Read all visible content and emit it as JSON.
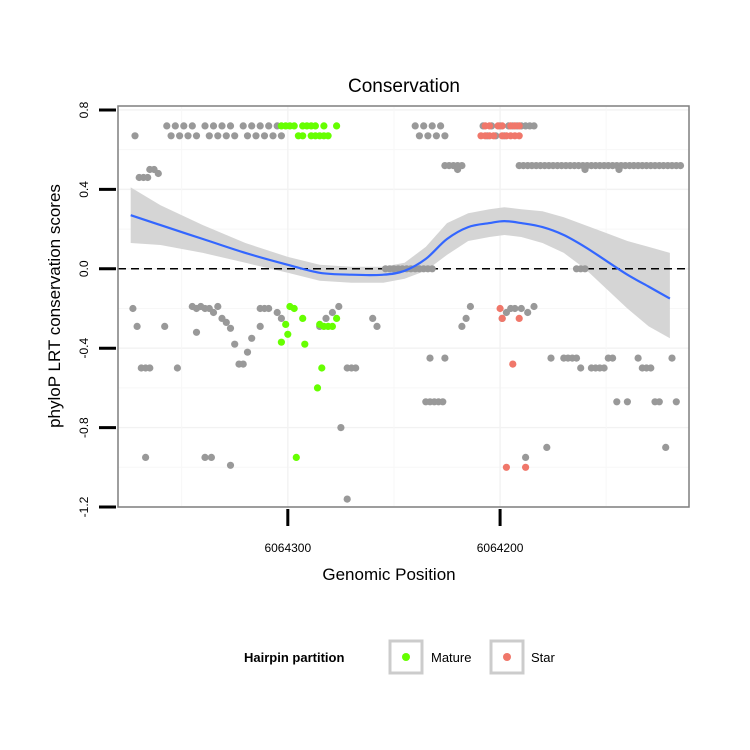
{
  "chart_data": {
    "type": "scatter",
    "title": "Conservation",
    "xlabel": "Genomic Position",
    "ylabel": "phyloP LRT conservation scores",
    "x_reversed": true,
    "xlim": [
      6064380,
      6064111
    ],
    "ylim": [
      -1.2,
      0.82
    ],
    "x_ticks": [
      6064300,
      6064200
    ],
    "x_tick_labels": [
      "6064300",
      "6064200"
    ],
    "y_ticks": [
      -1.2,
      -0.8,
      -0.4,
      0.0,
      0.4,
      0.8
    ],
    "y_tick_labels": [
      "-1.2",
      "-0.8",
      "-0.4",
      "0.0",
      "0.4",
      "0.8"
    ],
    "reference_line": {
      "y": 0.0,
      "style": "dashed"
    },
    "grid": true,
    "legend": {
      "title": "Hairpin partition",
      "position": "bottom",
      "entries": [
        {
          "label": "Mature",
          "color": "#66ff00"
        },
        {
          "label": "Star",
          "color": "#f0776a"
        }
      ]
    },
    "colors": {
      "other": "#999999",
      "mature": "#66ff00",
      "star": "#f0776a",
      "smooth": "#3366ff",
      "ribbon": "#d3d3d3"
    },
    "smooth": {
      "x": [
        6064374,
        6064360,
        6064340,
        6064320,
        6064300,
        6064285,
        6064270,
        6064255,
        6064245,
        6064235,
        6064225,
        6064215,
        6064205,
        6064198,
        6064190,
        6064180,
        6064170,
        6064160,
        6064150,
        6064140,
        6064130,
        6064120
      ],
      "y": [
        0.27,
        0.22,
        0.15,
        0.08,
        0.02,
        -0.02,
        -0.03,
        -0.03,
        -0.01,
        0.05,
        0.15,
        0.21,
        0.23,
        0.24,
        0.23,
        0.21,
        0.17,
        0.11,
        0.04,
        -0.03,
        -0.09,
        -0.15
      ],
      "lower": [
        0.13,
        0.12,
        0.08,
        0.03,
        -0.02,
        -0.06,
        -0.07,
        -0.07,
        -0.05,
        -0.01,
        0.07,
        0.14,
        0.16,
        0.17,
        0.16,
        0.13,
        0.08,
        0.0,
        -0.1,
        -0.2,
        -0.29,
        -0.35
      ],
      "upper": [
        0.41,
        0.32,
        0.22,
        0.13,
        0.06,
        0.02,
        0.01,
        0.01,
        0.03,
        0.11,
        0.23,
        0.28,
        0.3,
        0.31,
        0.3,
        0.29,
        0.26,
        0.22,
        0.18,
        0.14,
        0.11,
        0.08
      ]
    },
    "series": [
      {
        "name": "Other",
        "color": "#999999",
        "points": [
          [
            6064372,
            0.67
          ],
          [
            6064370,
            0.46
          ],
          [
            6064368,
            0.46
          ],
          [
            6064366,
            0.46
          ],
          [
            6064365,
            0.5
          ],
          [
            6064363,
            0.5
          ],
          [
            6064361,
            0.48
          ],
          [
            6064357,
            0.72
          ],
          [
            6064355,
            0.67
          ],
          [
            6064353,
            0.72
          ],
          [
            6064351,
            0.67
          ],
          [
            6064349,
            0.72
          ],
          [
            6064347,
            0.67
          ],
          [
            6064345,
            0.72
          ],
          [
            6064343,
            0.67
          ],
          [
            6064339,
            0.72
          ],
          [
            6064337,
            0.67
          ],
          [
            6064335,
            0.72
          ],
          [
            6064333,
            0.67
          ],
          [
            6064331,
            0.72
          ],
          [
            6064329,
            0.67
          ],
          [
            6064327,
            0.72
          ],
          [
            6064325,
            0.67
          ],
          [
            6064321,
            0.72
          ],
          [
            6064319,
            0.67
          ],
          [
            6064317,
            0.72
          ],
          [
            6064315,
            0.67
          ],
          [
            6064313,
            0.72
          ],
          [
            6064311,
            0.67
          ],
          [
            6064309,
            0.72
          ],
          [
            6064307,
            0.67
          ],
          [
            6064305,
            0.72
          ],
          [
            6064303,
            0.67
          ],
          [
            6064240,
            0.72
          ],
          [
            6064238,
            0.67
          ],
          [
            6064236,
            0.72
          ],
          [
            6064234,
            0.67
          ],
          [
            6064232,
            0.72
          ],
          [
            6064230,
            0.67
          ],
          [
            6064228,
            0.72
          ],
          [
            6064226,
            0.67
          ],
          [
            6064208,
            0.72
          ],
          [
            6064206,
            0.67
          ],
          [
            6064204,
            0.72
          ],
          [
            6064202,
            0.67
          ],
          [
            6064200,
            0.72
          ],
          [
            6064198,
            0.67
          ],
          [
            6064196,
            0.72
          ],
          [
            6064194,
            0.72
          ],
          [
            6064192,
            0.72
          ],
          [
            6064190,
            0.72
          ],
          [
            6064188,
            0.72
          ],
          [
            6064186,
            0.72
          ],
          [
            6064184,
            0.72
          ],
          [
            6064226,
            0.52
          ],
          [
            6064224,
            0.52
          ],
          [
            6064222,
            0.52
          ],
          [
            6064220,
            0.52
          ],
          [
            6064218,
            0.52
          ],
          [
            6064220,
            0.5
          ],
          [
            6064191,
            0.52
          ],
          [
            6064189,
            0.52
          ],
          [
            6064187,
            0.52
          ],
          [
            6064185,
            0.52
          ],
          [
            6064183,
            0.52
          ],
          [
            6064181,
            0.52
          ],
          [
            6064179,
            0.52
          ],
          [
            6064177,
            0.52
          ],
          [
            6064175,
            0.52
          ],
          [
            6064173,
            0.52
          ],
          [
            6064171,
            0.52
          ],
          [
            6064169,
            0.52
          ],
          [
            6064167,
            0.52
          ],
          [
            6064165,
            0.52
          ],
          [
            6064163,
            0.52
          ],
          [
            6064161,
            0.52
          ],
          [
            6064159,
            0.52
          ],
          [
            6064157,
            0.52
          ],
          [
            6064155,
            0.52
          ],
          [
            6064153,
            0.52
          ],
          [
            6064151,
            0.52
          ],
          [
            6064149,
            0.52
          ],
          [
            6064147,
            0.52
          ],
          [
            6064145,
            0.52
          ],
          [
            6064143,
            0.52
          ],
          [
            6064141,
            0.52
          ],
          [
            6064139,
            0.52
          ],
          [
            6064137,
            0.52
          ],
          [
            6064135,
            0.52
          ],
          [
            6064133,
            0.52
          ],
          [
            6064131,
            0.52
          ],
          [
            6064129,
            0.52
          ],
          [
            6064127,
            0.52
          ],
          [
            6064125,
            0.52
          ],
          [
            6064123,
            0.52
          ],
          [
            6064121,
            0.52
          ],
          [
            6064119,
            0.52
          ],
          [
            6064117,
            0.52
          ],
          [
            6064115,
            0.52
          ],
          [
            6064160,
            0.5
          ],
          [
            6064144,
            0.5
          ],
          [
            6064254,
            0.0
          ],
          [
            6064252,
            0.0
          ],
          [
            6064250,
            0.0
          ],
          [
            6064248,
            0.0
          ],
          [
            6064246,
            0.0
          ],
          [
            6064244,
            0.0
          ],
          [
            6064242,
            0.0
          ],
          [
            6064240,
            0.0
          ],
          [
            6064238,
            0.0
          ],
          [
            6064236,
            0.0
          ],
          [
            6064234,
            0.0
          ],
          [
            6064232,
            0.0
          ],
          [
            6064164,
            0.0
          ],
          [
            6064162,
            0.0
          ],
          [
            6064160,
            0.0
          ],
          [
            6064373,
            -0.2
          ],
          [
            6064371,
            -0.29
          ],
          [
            6064369,
            -0.5
          ],
          [
            6064367,
            -0.5
          ],
          [
            6064365,
            -0.5
          ],
          [
            6064367,
            -0.95
          ],
          [
            6064358,
            -0.29
          ],
          [
            6064352,
            -0.5
          ],
          [
            6064345,
            -0.19
          ],
          [
            6064343,
            -0.2
          ],
          [
            6064341,
            -0.19
          ],
          [
            6064339,
            -0.2
          ],
          [
            6064337,
            -0.2
          ],
          [
            6064335,
            -0.22
          ],
          [
            6064333,
            -0.19
          ],
          [
            6064343,
            -0.32
          ],
          [
            6064339,
            -0.95
          ],
          [
            6064336,
            -0.95
          ],
          [
            6064327,
            -0.99
          ],
          [
            6064331,
            -0.25
          ],
          [
            6064329,
            -0.27
          ],
          [
            6064327,
            -0.3
          ],
          [
            6064325,
            -0.38
          ],
          [
            6064323,
            -0.48
          ],
          [
            6064321,
            -0.48
          ],
          [
            6064319,
            -0.42
          ],
          [
            6064317,
            -0.35
          ],
          [
            6064313,
            -0.2
          ],
          [
            6064311,
            -0.2
          ],
          [
            6064309,
            -0.2
          ],
          [
            6064313,
            -0.29
          ],
          [
            6064305,
            -0.22
          ],
          [
            6064303,
            -0.25
          ],
          [
            6064285,
            -0.29
          ],
          [
            6064282,
            -0.25
          ],
          [
            6064279,
            -0.22
          ],
          [
            6064276,
            -0.19
          ],
          [
            6064272,
            -0.5
          ],
          [
            6064270,
            -0.5
          ],
          [
            6064268,
            -0.5
          ],
          [
            6064275,
            -0.8
          ],
          [
            6064272,
            -1.16
          ],
          [
            6064260,
            -0.25
          ],
          [
            6064258,
            -0.29
          ],
          [
            6064235,
            -0.67
          ],
          [
            6064233,
            -0.67
          ],
          [
            6064231,
            -0.67
          ],
          [
            6064229,
            -0.67
          ],
          [
            6064227,
            -0.67
          ],
          [
            6064233,
            -0.45
          ],
          [
            6064226,
            -0.45
          ],
          [
            6064218,
            -0.29
          ],
          [
            6064216,
            -0.25
          ],
          [
            6064214,
            -0.19
          ],
          [
            6064199,
            -0.25
          ],
          [
            6064197,
            -0.22
          ],
          [
            6064195,
            -0.2
          ],
          [
            6064193,
            -0.2
          ],
          [
            6064190,
            -0.2
          ],
          [
            6064187,
            -0.22
          ],
          [
            6064184,
            -0.19
          ],
          [
            6064188,
            -0.95
          ],
          [
            6064178,
            -0.9
          ],
          [
            6064176,
            -0.45
          ],
          [
            6064170,
            -0.45
          ],
          [
            6064168,
            -0.45
          ],
          [
            6064166,
            -0.45
          ],
          [
            6064164,
            -0.45
          ],
          [
            6064162,
            -0.5
          ],
          [
            6064157,
            -0.5
          ],
          [
            6064155,
            -0.5
          ],
          [
            6064153,
            -0.5
          ],
          [
            6064151,
            -0.5
          ],
          [
            6064149,
            -0.45
          ],
          [
            6064147,
            -0.45
          ],
          [
            6064145,
            -0.67
          ],
          [
            6064140,
            -0.67
          ],
          [
            6064135,
            -0.45
          ],
          [
            6064133,
            -0.5
          ],
          [
            6064131,
            -0.5
          ],
          [
            6064129,
            -0.5
          ],
          [
            6064127,
            -0.67
          ],
          [
            6064125,
            -0.67
          ],
          [
            6064122,
            -0.9
          ],
          [
            6064119,
            -0.45
          ],
          [
            6064117,
            -0.67
          ]
        ]
      },
      {
        "name": "Mature",
        "color": "#66ff00",
        "points": [
          [
            6064303,
            0.72
          ],
          [
            6064301,
            0.72
          ],
          [
            6064299,
            0.72
          ],
          [
            6064297,
            0.72
          ],
          [
            6064293,
            0.72
          ],
          [
            6064291,
            0.72
          ],
          [
            6064289,
            0.72
          ],
          [
            6064287,
            0.72
          ],
          [
            6064283,
            0.72
          ],
          [
            6064277,
            0.72
          ],
          [
            6064295,
            0.67
          ],
          [
            6064293,
            0.67
          ],
          [
            6064289,
            0.67
          ],
          [
            6064287,
            0.67
          ],
          [
            6064285,
            0.67
          ],
          [
            6064283,
            0.67
          ],
          [
            6064281,
            0.67
          ],
          [
            6064299,
            -0.19
          ],
          [
            6064297,
            -0.2
          ],
          [
            6064293,
            -0.25
          ],
          [
            6064285,
            -0.28
          ],
          [
            6064283,
            -0.29
          ],
          [
            6064281,
            -0.29
          ],
          [
            6064279,
            -0.29
          ],
          [
            6064277,
            -0.25
          ],
          [
            6064301,
            -0.28
          ],
          [
            6064300,
            -0.33
          ],
          [
            6064303,
            -0.37
          ],
          [
            6064292,
            -0.38
          ],
          [
            6064284,
            -0.5
          ],
          [
            6064286,
            -0.6
          ],
          [
            6064296,
            -0.95
          ]
        ]
      },
      {
        "name": "Star",
        "color": "#f0776a",
        "points": [
          [
            6064207,
            0.72
          ],
          [
            6064205,
            0.72
          ],
          [
            6064201,
            0.72
          ],
          [
            6064199,
            0.72
          ],
          [
            6064195,
            0.72
          ],
          [
            6064193,
            0.72
          ],
          [
            6064191,
            0.72
          ],
          [
            6064209,
            0.67
          ],
          [
            6064207,
            0.67
          ],
          [
            6064205,
            0.67
          ],
          [
            6064203,
            0.67
          ],
          [
            6064199,
            0.67
          ],
          [
            6064197,
            0.67
          ],
          [
            6064195,
            0.67
          ],
          [
            6064193,
            0.67
          ],
          [
            6064191,
            0.67
          ],
          [
            6064200,
            -0.2
          ],
          [
            6064199,
            -0.25
          ],
          [
            6064191,
            -0.25
          ],
          [
            6064194,
            -0.48
          ],
          [
            6064197,
            -1.0
          ],
          [
            6064188,
            -1.0
          ]
        ]
      }
    ]
  }
}
